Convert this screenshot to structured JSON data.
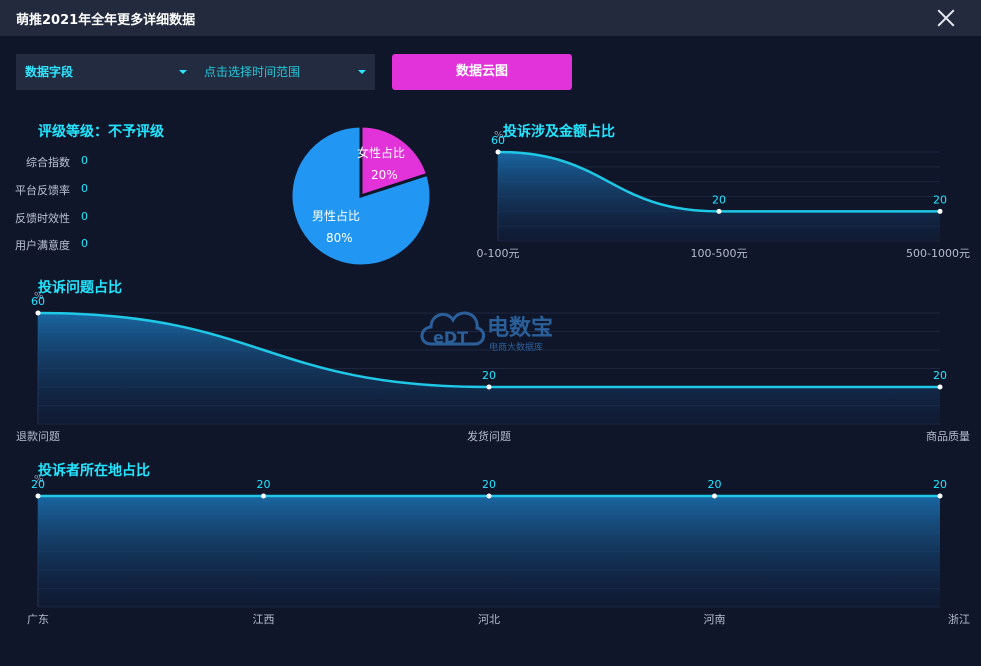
{
  "window": {
    "title": "萌推2021年全年更多详细数据"
  },
  "filters": {
    "field_label": "数据字段",
    "range_placeholder": "点击选择时间范围",
    "cloud_button": "数据云图"
  },
  "rating": {
    "title": "评级等级：不予评级",
    "metrics": [
      {
        "label": "综合指数",
        "value": "0"
      },
      {
        "label": "平台反馈率",
        "value": "0"
      },
      {
        "label": "反馈时效性",
        "value": "0"
      },
      {
        "label": "用户满意度",
        "value": "0"
      }
    ]
  },
  "watermark": {
    "brand": "电数宝",
    "sub": "电商大数据库",
    "logo": "eDT"
  },
  "chart_data": [
    {
      "type": "pie",
      "slices": [
        {
          "label": "女性占比",
          "value": 20,
          "display": "20%",
          "color": "#e133d9"
        },
        {
          "label": "男性占比",
          "value": 80,
          "display": "80%",
          "color": "#2196f3"
        }
      ]
    },
    {
      "type": "area",
      "title": "投诉涉及金额占比",
      "y_unit": "%",
      "categories": [
        "0-100元",
        "100-500元",
        "500-1000元"
      ],
      "values": [
        60,
        20,
        20
      ],
      "value_labels": [
        "60",
        "20",
        "20"
      ],
      "ylim": [
        0,
        60
      ]
    },
    {
      "type": "area",
      "title": "投诉问题占比",
      "y_unit": "%",
      "categories": [
        "退款问题",
        "发货问题",
        "商品质量"
      ],
      "values": [
        60,
        20,
        20
      ],
      "value_labels": [
        "60",
        "20",
        "20"
      ],
      "ylim": [
        0,
        60
      ]
    },
    {
      "type": "area",
      "title": "投诉者所在地占比",
      "y_unit": "%",
      "categories": [
        "广东",
        "江西",
        "河北",
        "河南",
        "浙江"
      ],
      "values": [
        20,
        20,
        20,
        20,
        20
      ],
      "value_labels": [
        "20",
        "20",
        "20",
        "20",
        "20"
      ],
      "ylim": [
        0,
        20
      ]
    }
  ]
}
